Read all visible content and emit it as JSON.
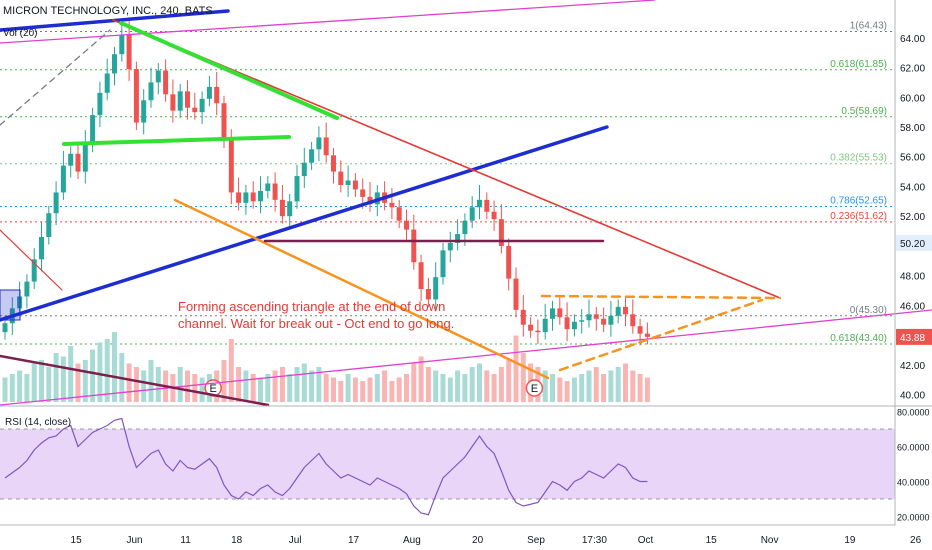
{
  "header": {
    "title": "MICRON TECHNOLOGY, INC., 240, BATS",
    "vol_label": "Vol (20)"
  },
  "chart_data": {
    "type": "candlestick",
    "symbol": "MICRON TECHNOLOGY, INC.",
    "interval": "240",
    "exchange": "BATS",
    "ylim": [
      39.5,
      65.2
    ],
    "price_ticks": [
      40,
      42,
      44,
      46,
      48,
      50,
      52,
      54,
      56,
      58,
      60,
      62,
      64
    ],
    "time_axis": [
      "15",
      "Jun",
      "11",
      "18",
      "Jul",
      "17",
      "Aug",
      "20",
      "Sep",
      "17:30",
      "Oct",
      "15",
      "Nov",
      "19",
      "26"
    ],
    "time_axis_bars": [
      7,
      15,
      22,
      29,
      37,
      45,
      53,
      62,
      70,
      78,
      85,
      94,
      102,
      113,
      122
    ],
    "current_price": {
      "value": 43.88,
      "label": "43.88",
      "color": "#ef5350"
    },
    "price_marker": {
      "value": 50.2,
      "label": "50.20"
    },
    "fibonacci": [
      {
        "label": "1(64.43)",
        "value": 64.43,
        "color": "#787b86"
      },
      {
        "label": "0.618(61.85)",
        "value": 61.85,
        "color": "#4caf50"
      },
      {
        "label": "0.5(58.69)",
        "value": 58.69,
        "color": "#4caf50"
      },
      {
        "label": "0.382(55.53)",
        "value": 55.53,
        "color": "#81c784"
      },
      {
        "label": "0.786(52.65)",
        "value": 52.65,
        "color": "#2196f3"
      },
      {
        "label": "0.236(51.62)",
        "value": 51.62,
        "color": "#f44336"
      },
      {
        "label": "0(45.30)",
        "value": 45.3,
        "color": "#787b86"
      },
      {
        "label": "0.618(43.40)",
        "value": 43.4,
        "color": "#4caf50"
      }
    ],
    "closes": [
      44.8,
      45.8,
      46.6,
      47.6,
      49.1,
      50.6,
      52.2,
      53.6,
      55.4,
      56.2,
      55.0,
      56.8,
      58.8,
      60.3,
      61.6,
      62.9,
      64.2,
      61.9,
      58.3,
      59.8,
      61.0,
      61.8,
      60.2,
      59.1,
      60.4,
      59.3,
      59.0,
      59.9,
      60.7,
      59.6,
      57.1,
      53.6,
      52.9,
      53.6,
      53.0,
      53.7,
      54.2,
      53.1,
      52.0,
      53.0,
      54.7,
      55.6,
      56.5,
      57.3,
      56.1,
      55.0,
      54.1,
      54.4,
      53.8,
      53.3,
      52.8,
      53.6,
      52.9,
      52.6,
      51.7,
      51.1,
      48.9,
      47.1,
      46.4,
      47.9,
      49.7,
      50.2,
      50.8,
      51.7,
      52.6,
      53.1,
      52.3,
      51.8,
      50.0,
      47.8,
      45.7,
      44.7,
      44.3,
      44.2,
      45.1,
      45.8,
      45.2,
      44.4,
      44.9,
      45.0,
      45.4,
      45.1,
      44.7,
      45.3,
      45.9,
      45.4,
      44.6,
      44.1,
      43.88
    ],
    "volume": [
      0.35,
      0.4,
      0.45,
      0.4,
      0.55,
      0.6,
      0.5,
      0.7,
      0.65,
      0.8,
      0.55,
      0.6,
      0.75,
      0.85,
      0.9,
      1.0,
      0.7,
      0.55,
      0.5,
      0.45,
      0.6,
      0.5,
      0.45,
      0.4,
      0.5,
      0.45,
      0.4,
      0.35,
      0.4,
      0.45,
      0.6,
      0.9,
      0.5,
      0.45,
      0.4,
      0.35,
      0.4,
      0.45,
      0.5,
      0.4,
      0.5,
      0.55,
      0.45,
      0.5,
      0.4,
      0.35,
      0.3,
      0.4,
      0.35,
      0.3,
      0.35,
      0.4,
      0.45,
      0.3,
      0.35,
      0.4,
      0.55,
      0.65,
      0.5,
      0.45,
      0.4,
      0.35,
      0.45,
      0.4,
      0.5,
      0.55,
      0.45,
      0.4,
      0.5,
      0.6,
      0.95,
      0.7,
      0.55,
      0.5,
      0.45,
      0.4,
      0.35,
      0.3,
      0.35,
      0.4,
      0.45,
      0.5,
      0.4,
      0.45,
      0.5,
      0.55,
      0.45,
      0.4,
      0.35
    ],
    "earnings_markers": [
      {
        "label": "E",
        "bar": 24
      },
      {
        "label": "E",
        "bar": 68
      }
    ],
    "rsi": {
      "label": "RSI (14, close)",
      "ylim": [
        18,
        82
      ],
      "ticks": [
        20,
        40,
        60,
        80
      ],
      "tick_labels": [
        "20.0000",
        "40.0000",
        "60.0000",
        "80.0000"
      ],
      "band": [
        30,
        70
      ],
      "values": [
        42,
        45,
        48,
        52,
        58,
        62,
        65,
        66,
        70,
        72,
        60,
        64,
        68,
        70,
        72,
        75,
        76,
        60,
        48,
        52,
        56,
        58,
        50,
        46,
        52,
        48,
        47,
        50,
        53,
        48,
        38,
        32,
        30,
        34,
        32,
        36,
        38,
        34,
        32,
        36,
        42,
        48,
        52,
        56,
        50,
        46,
        42,
        44,
        42,
        40,
        38,
        42,
        40,
        38,
        36,
        33,
        26,
        22,
        21,
        32,
        42,
        46,
        50,
        54,
        60,
        66,
        60,
        56,
        46,
        35,
        28,
        26,
        27,
        28,
        34,
        40,
        38,
        35,
        40,
        42,
        46,
        44,
        42,
        46,
        50,
        48,
        42,
        40,
        40
      ]
    },
    "annotations": [
      {
        "type": "text",
        "lines": [
          "Forming ascending triangle at the end of down",
          "channel. Wait for break out - Oct end to go long."
        ],
        "color": "#e53935"
      }
    ]
  },
  "colors": {
    "up": "#26a69a",
    "down": "#ef5350",
    "blue_channel": "#1e2dcf",
    "red_trend": "#e53935",
    "green_trend": "#33e033",
    "orange_trend": "#f7931e",
    "purple_line": "#7b1f4f",
    "magenta_line": "#e040d0",
    "rsi_band": "#e9d5f7",
    "rsi_line": "#7e57c2",
    "text": "#131722"
  }
}
